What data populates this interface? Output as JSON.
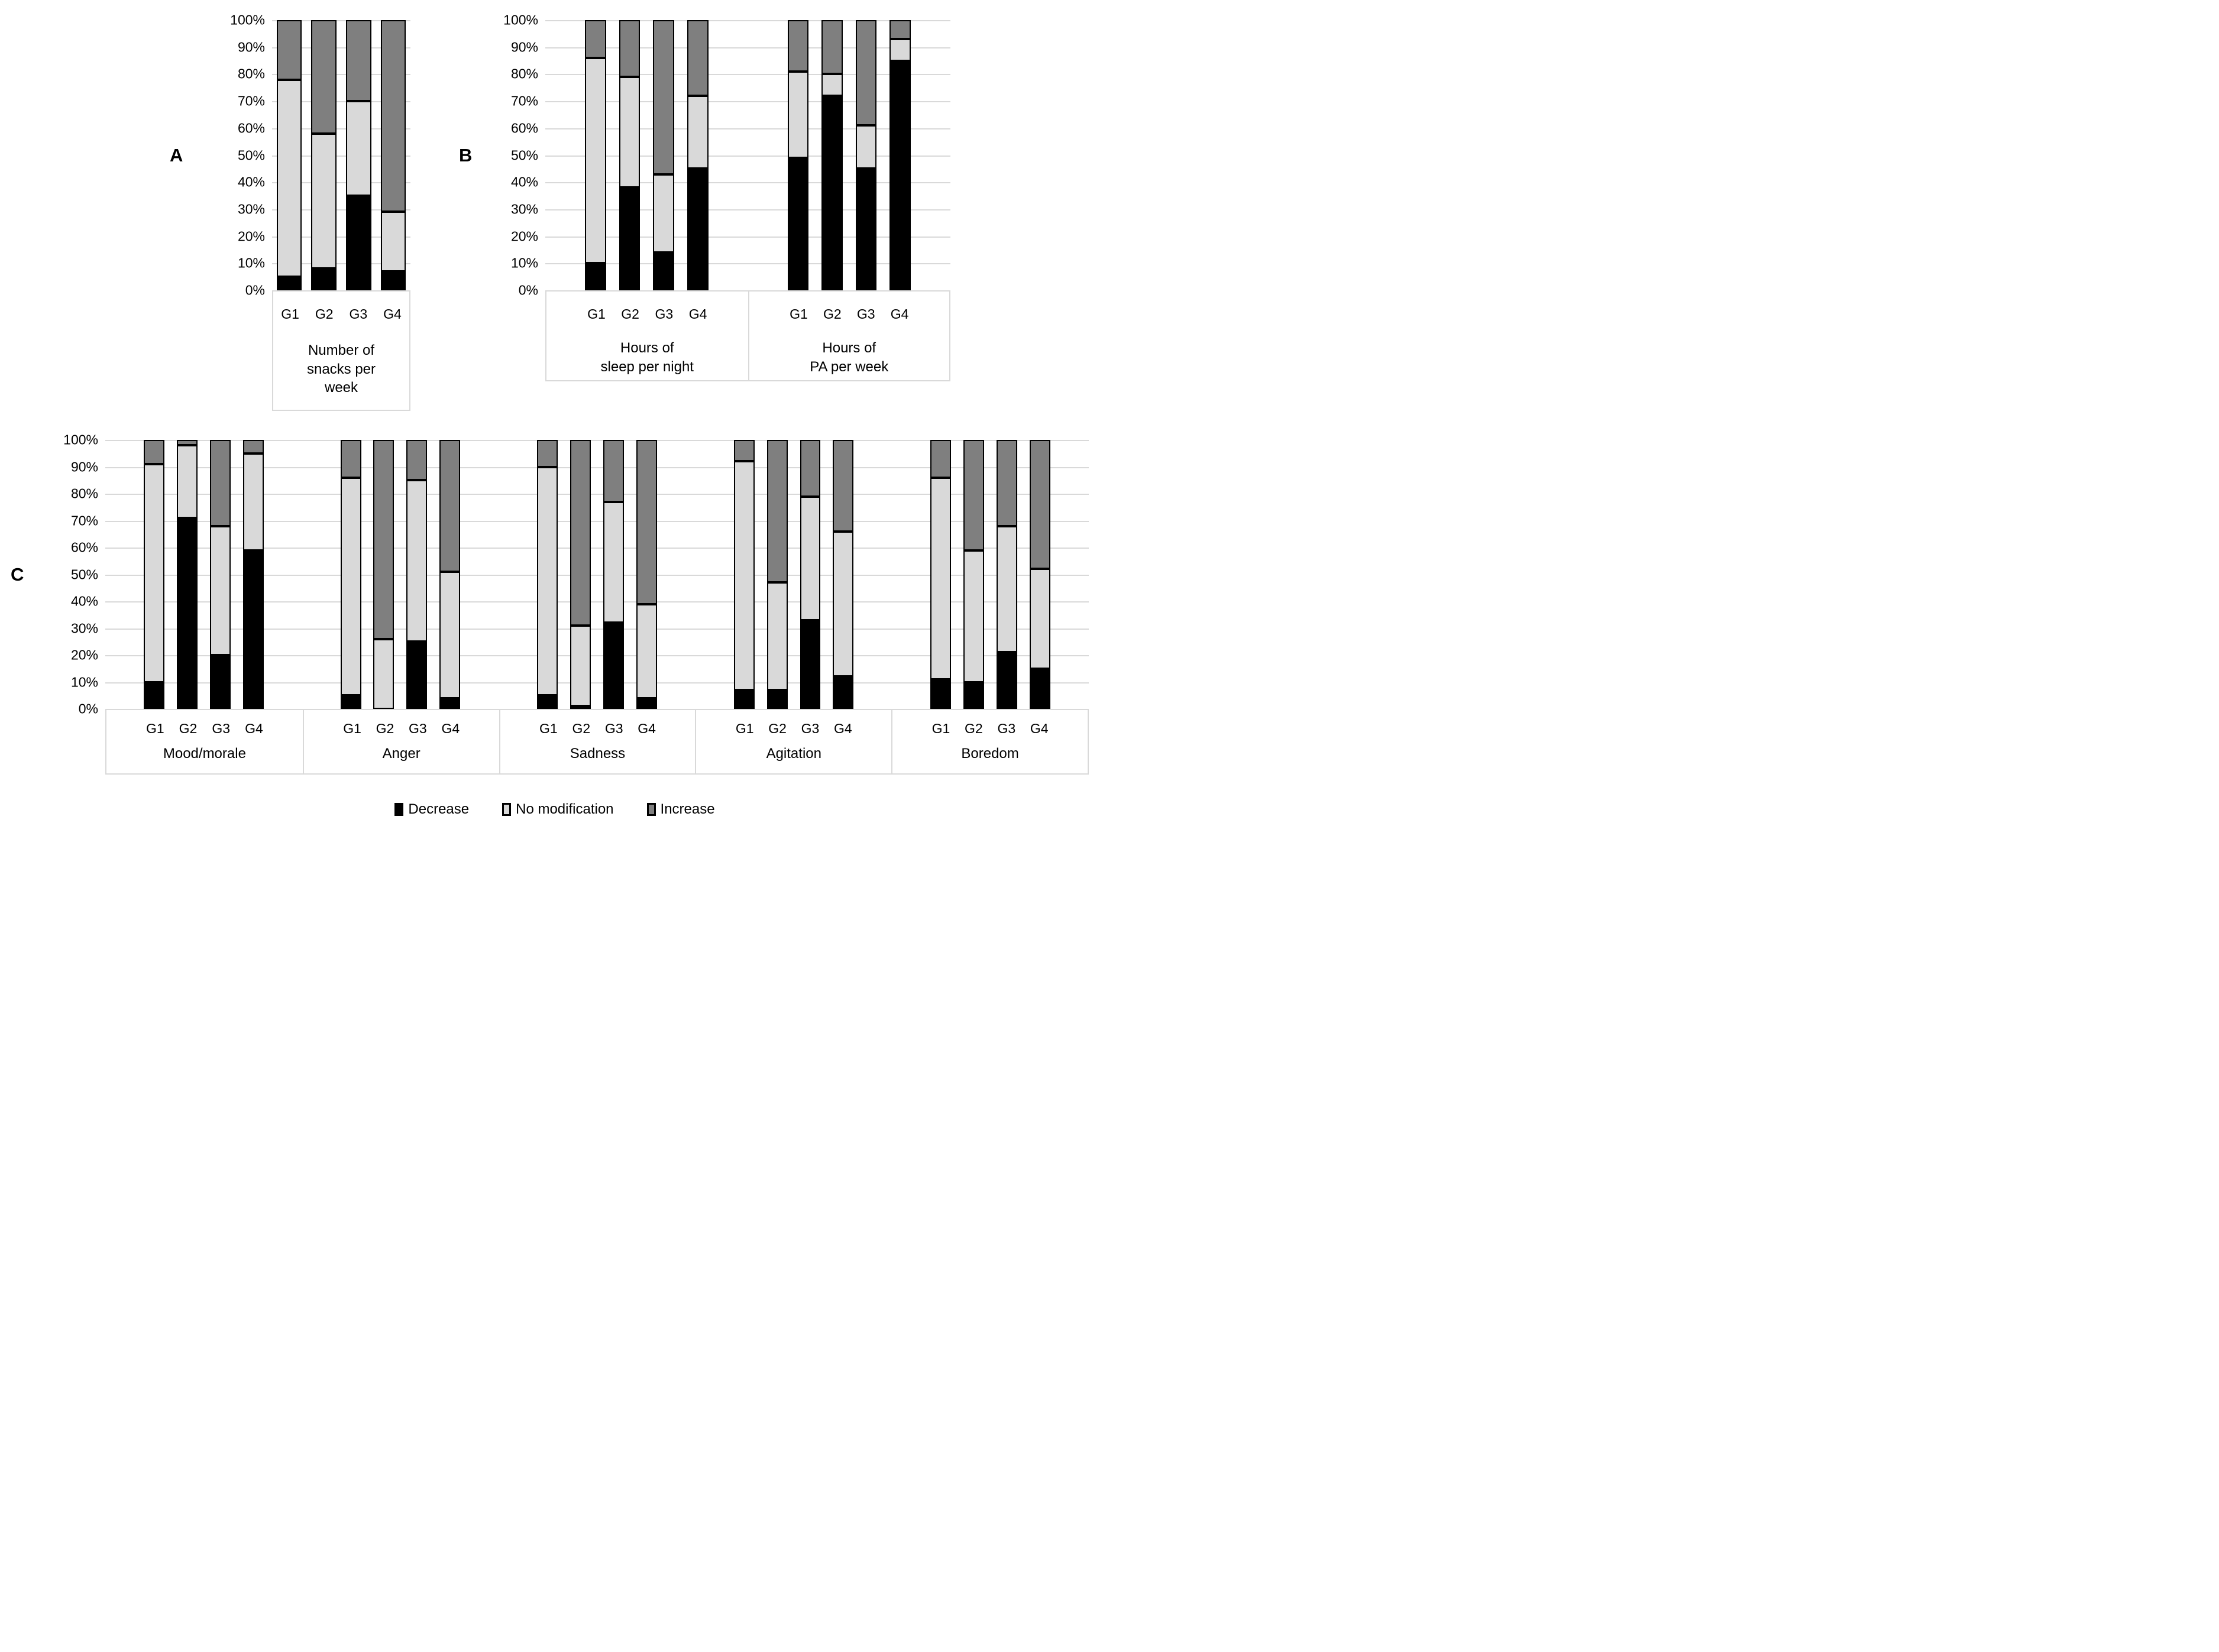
{
  "figure": {
    "background": "#ffffff"
  },
  "panels": {
    "a": {
      "letter": "A"
    },
    "b": {
      "letter": "B"
    },
    "c": {
      "letter": "C"
    }
  },
  "y_axis": {
    "ticks": [
      "100%",
      "90%",
      "80%",
      "70%",
      "60%",
      "50%",
      "40%",
      "30%",
      "20%",
      "10%",
      "0%"
    ]
  },
  "colors": {
    "decrease": "#000000",
    "no_modification": "#d9d9d9",
    "increase": "#7f7f7f",
    "gridline": "#d9d9d9"
  },
  "legend": {
    "items": [
      {
        "name": "decrease",
        "label": "Decrease",
        "color": "#000000"
      },
      {
        "name": "no-modification",
        "label": "No modification",
        "color": "#d9d9d9"
      },
      {
        "name": "increase",
        "label": "Increase",
        "color": "#7f7f7f"
      }
    ]
  },
  "chart_data": [
    {
      "panel": "A",
      "type": "bar",
      "stacked": true,
      "ylim": [
        0,
        100
      ],
      "grid": true,
      "legend_position": "bottom",
      "series_order": [
        "Decrease",
        "No modification",
        "Increase"
      ],
      "groups": [
        {
          "label": "Number of snacks per week",
          "label_lines": [
            "Number of",
            "snacks per",
            "week"
          ],
          "categories": [
            "G1",
            "G2",
            "G3",
            "G4"
          ],
          "series": [
            {
              "name": "Decrease",
              "values": [
                5,
                8,
                35,
                7
              ]
            },
            {
              "name": "No modification",
              "values": [
                73,
                50,
                35,
                22
              ]
            },
            {
              "name": "Increase",
              "values": [
                22,
                42,
                30,
                71
              ]
            }
          ]
        }
      ]
    },
    {
      "panel": "B",
      "type": "bar",
      "stacked": true,
      "ylim": [
        0,
        100
      ],
      "grid": true,
      "series_order": [
        "Decrease",
        "No modification",
        "Increase"
      ],
      "groups": [
        {
          "label": "Hours of sleep per night",
          "label_lines": [
            "Hours of",
            "sleep per night"
          ],
          "categories": [
            "G1",
            "G2",
            "G3",
            "G4"
          ],
          "series": [
            {
              "name": "Decrease",
              "values": [
                10,
                38,
                14,
                45
              ]
            },
            {
              "name": "No modification",
              "values": [
                76,
                41,
                29,
                27
              ]
            },
            {
              "name": "Increase",
              "values": [
                14,
                21,
                57,
                28
              ]
            }
          ]
        },
        {
          "label": "Hours of PA per week",
          "label_lines": [
            "Hours of",
            "PA per week"
          ],
          "categories": [
            "G1",
            "G2",
            "G3",
            "G4"
          ],
          "series": [
            {
              "name": "Decrease",
              "values": [
                49,
                72,
                45,
                85
              ]
            },
            {
              "name": "No modification",
              "values": [
                32,
                8,
                16,
                8
              ]
            },
            {
              "name": "Increase",
              "values": [
                19,
                20,
                39,
                7
              ]
            }
          ]
        }
      ]
    },
    {
      "panel": "C",
      "type": "bar",
      "stacked": true,
      "ylim": [
        0,
        100
      ],
      "grid": true,
      "series_order": [
        "Decrease",
        "No modification",
        "Increase"
      ],
      "groups": [
        {
          "label": "Mood/morale",
          "label_lines": [
            "Mood/morale"
          ],
          "categories": [
            "G1",
            "G2",
            "G3",
            "G4"
          ],
          "series": [
            {
              "name": "Decrease",
              "values": [
                10,
                71,
                20,
                59
              ]
            },
            {
              "name": "No modification",
              "values": [
                81,
                27,
                48,
                36
              ]
            },
            {
              "name": "Increase",
              "values": [
                9,
                2,
                32,
                5
              ]
            }
          ]
        },
        {
          "label": "Anger",
          "label_lines": [
            "Anger"
          ],
          "categories": [
            "G1",
            "G2",
            "G3",
            "G4"
          ],
          "series": [
            {
              "name": "Decrease",
              "values": [
                5,
                0,
                25,
                4
              ]
            },
            {
              "name": "No modification",
              "values": [
                81,
                26,
                60,
                47
              ]
            },
            {
              "name": "Increase",
              "values": [
                14,
                74,
                15,
                49
              ]
            }
          ]
        },
        {
          "label": "Sadness",
          "label_lines": [
            "Sadness"
          ],
          "categories": [
            "G1",
            "G2",
            "G3",
            "G4"
          ],
          "series": [
            {
              "name": "Decrease",
              "values": [
                5,
                1,
                32,
                4
              ]
            },
            {
              "name": "No modification",
              "values": [
                85,
                30,
                45,
                35
              ]
            },
            {
              "name": "Increase",
              "values": [
                10,
                69,
                23,
                61
              ]
            }
          ]
        },
        {
          "label": "Agitation",
          "label_lines": [
            "Agitation"
          ],
          "categories": [
            "G1",
            "G2",
            "G3",
            "G4"
          ],
          "series": [
            {
              "name": "Decrease",
              "values": [
                7,
                7,
                33,
                12
              ]
            },
            {
              "name": "No modification",
              "values": [
                85,
                40,
                46,
                54
              ]
            },
            {
              "name": "Increase",
              "values": [
                8,
                53,
                21,
                34
              ]
            }
          ]
        },
        {
          "label": "Boredom",
          "label_lines": [
            "Boredom"
          ],
          "categories": [
            "G1",
            "G2",
            "G3",
            "G4"
          ],
          "series": [
            {
              "name": "Decrease",
              "values": [
                11,
                10,
                21,
                15
              ]
            },
            {
              "name": "No modification",
              "values": [
                75,
                49,
                47,
                37
              ]
            },
            {
              "name": "Increase",
              "values": [
                14,
                41,
                32,
                48
              ]
            }
          ]
        }
      ]
    }
  ]
}
